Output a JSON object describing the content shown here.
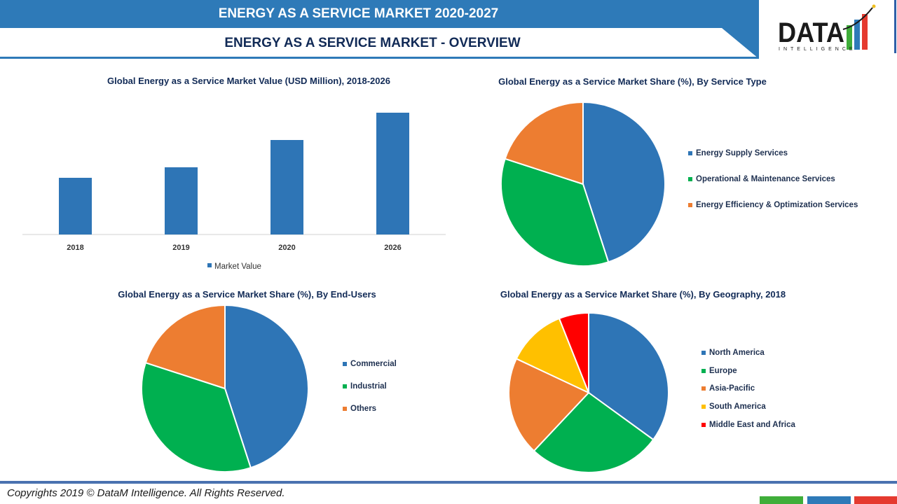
{
  "header": {
    "title": "ENERGY AS A SERVICE MARKET  2020-2027",
    "subtitle": "ENERGY AS A SERVICE MARKET  - OVERVIEW",
    "logo_text": "DATA",
    "logo_subtext": "INTELLIGENCE"
  },
  "footer": {
    "copyright": "Copyrights 2019 © DataM Intelligence. All Rights Reserved.",
    "squares": [
      "#3fae3a",
      "#2e7ab8",
      "#e53a2f"
    ]
  },
  "chart_data": [
    {
      "type": "bar",
      "title": "Global Energy as a Service Market Value (USD Million), 2018-2026",
      "categories": [
        "2018",
        "2019",
        "2020",
        "2026"
      ],
      "series": [
        {
          "name": "Market Value",
          "values": [
            81,
            96,
            135,
            174
          ],
          "color": "#2e75b6"
        }
      ],
      "legend": "bottom",
      "grid": false,
      "yaxis_shown": false
    },
    {
      "type": "pie",
      "title": "Global Energy as a Service Market Share (%), By Service Type",
      "legend": "right",
      "labels": [
        "Energy Supply Services",
        "Operational & Maintenance Services",
        "Energy Efficiency & Optimization Services"
      ],
      "values": [
        45,
        35,
        20
      ],
      "colors": [
        "#2e75b6",
        "#00b050",
        "#ed7d31"
      ]
    },
    {
      "type": "pie",
      "title": "Global Energy as a Service Market Share (%), By End-Users",
      "legend": "right",
      "labels": [
        "Commercial",
        "Industrial",
        "Others"
      ],
      "values": [
        45,
        35,
        20
      ],
      "colors": [
        "#2e75b6",
        "#00b050",
        "#ed7d31"
      ]
    },
    {
      "type": "pie",
      "title": "Global Energy as a Service Market Share (%), By Geography, 2018",
      "legend": "right",
      "labels": [
        "North America",
        "Europe",
        "Asia-Pacific",
        "South America",
        "Middle East and Africa"
      ],
      "values": [
        35,
        27,
        20,
        12,
        6
      ],
      "colors": [
        "#2e75b6",
        "#00b050",
        "#ed7d31",
        "#ffc000",
        "#ff0000"
      ]
    }
  ]
}
